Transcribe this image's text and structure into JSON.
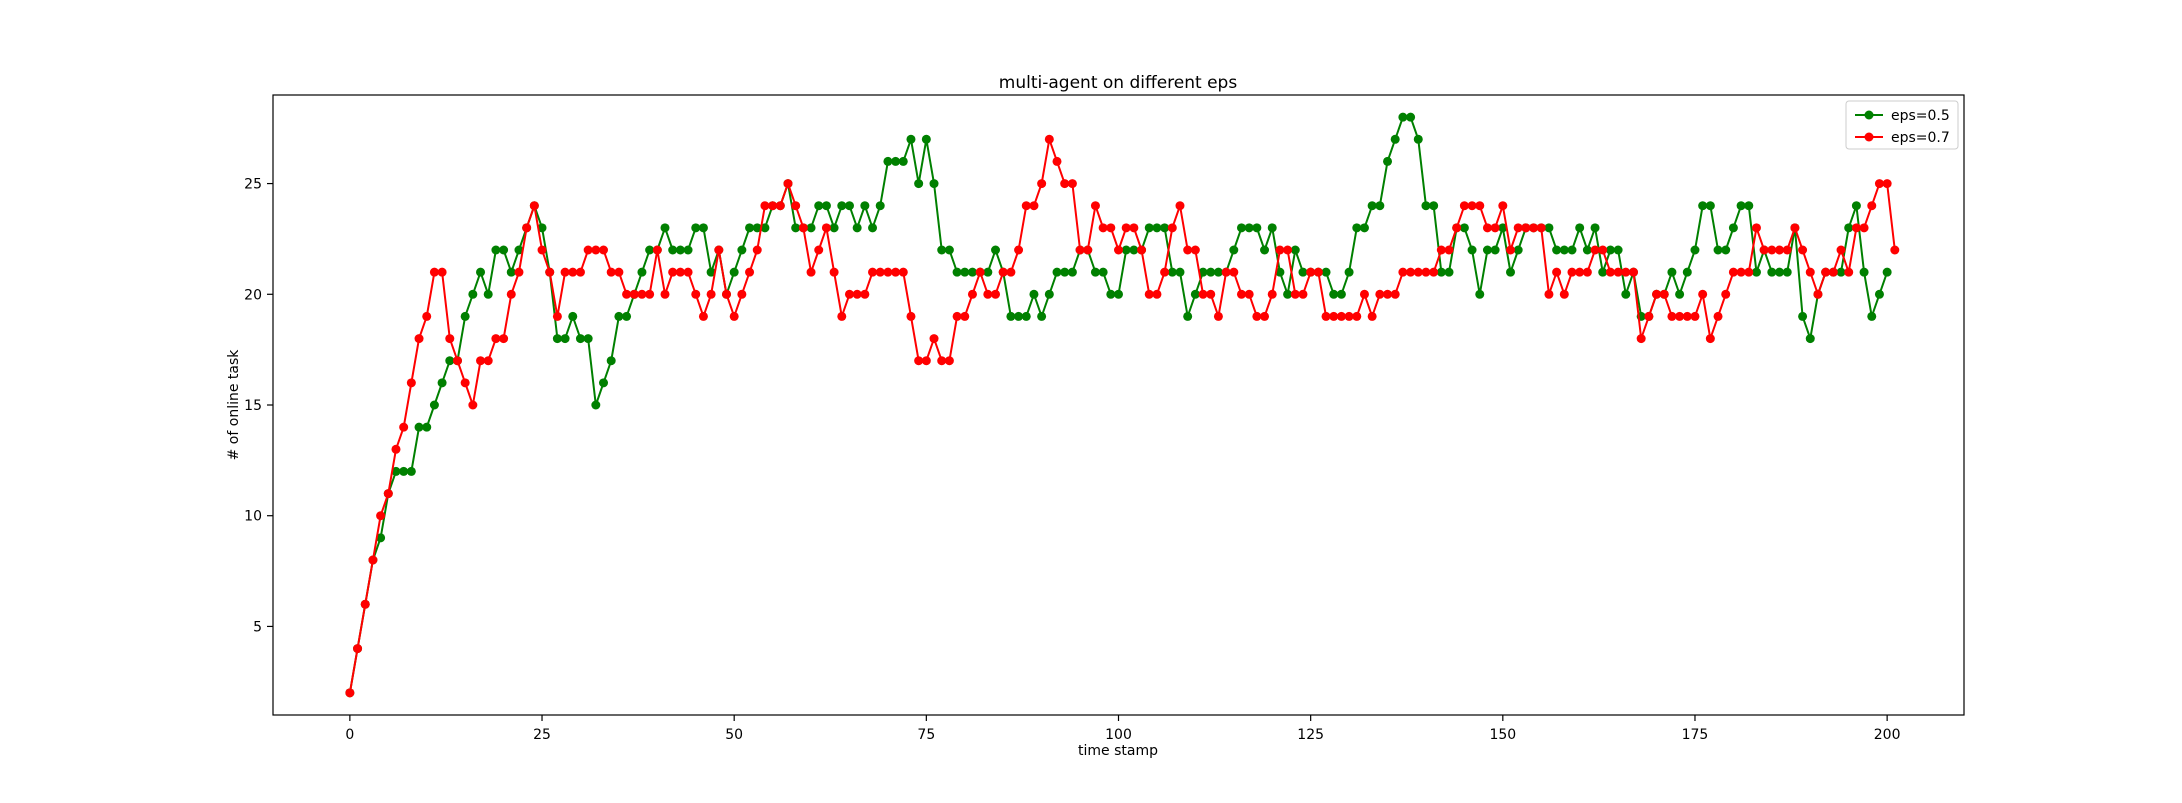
{
  "chart_data": {
    "type": "line",
    "title": "multi-agent on different eps",
    "xlabel": "time stamp",
    "ylabel": "# of online task",
    "xlim": [
      -10,
      210
    ],
    "ylim": [
      1,
      29
    ],
    "xticks": [
      0,
      25,
      50,
      75,
      100,
      125,
      150,
      175,
      200
    ],
    "yticks": [
      5,
      10,
      15,
      20,
      25
    ],
    "grid": false,
    "legend": "top-right",
    "series": [
      {
        "name": "eps=0.5",
        "color": "#008000",
        "marker": "circle",
        "values": [
          2,
          4,
          6,
          8,
          9,
          11,
          12,
          12,
          12,
          14,
          14,
          15,
          16,
          17,
          17,
          19,
          20,
          21,
          20,
          22,
          22,
          21,
          22,
          23,
          24,
          23,
          21,
          18,
          18,
          19,
          18,
          18,
          15,
          16,
          17,
          19,
          19,
          20,
          21,
          22,
          22,
          23,
          22,
          22,
          22,
          23,
          23,
          21,
          22,
          20,
          21,
          22,
          23,
          23,
          23,
          24,
          24,
          25,
          23,
          23,
          23,
          24,
          24,
          23,
          24,
          24,
          23,
          24,
          23,
          24,
          26,
          26,
          26,
          27,
          25,
          27,
          25,
          22,
          22,
          21,
          21,
          21,
          21,
          21,
          22,
          21,
          19,
          19,
          19,
          20,
          19,
          20,
          21,
          21,
          21,
          22,
          22,
          21,
          21,
          20,
          20,
          22,
          22,
          22,
          23,
          23,
          23,
          21,
          21,
          19,
          20,
          21,
          21,
          21,
          21,
          22,
          23,
          23,
          23,
          22,
          23,
          21,
          20,
          22,
          21,
          21,
          21,
          21,
          20,
          20,
          21,
          23,
          23,
          24,
          24,
          26,
          27,
          28,
          28,
          27,
          24,
          24,
          21,
          21,
          23,
          23,
          22,
          20,
          22,
          22,
          23,
          21,
          22,
          23,
          23,
          23,
          23,
          22,
          22,
          22,
          23,
          22,
          23,
          21,
          22,
          22,
          20,
          21,
          19,
          19,
          20,
          20,
          21,
          20,
          21,
          22,
          24,
          24,
          22,
          22,
          23,
          24,
          24,
          21,
          22,
          21,
          21,
          21,
          23,
          19,
          18,
          20,
          21,
          21,
          21,
          23,
          24,
          21,
          19,
          20,
          21
        ]
      },
      {
        "name": "eps=0.7",
        "color": "#ff0000",
        "marker": "circle",
        "values": [
          2,
          4,
          6,
          8,
          10,
          11,
          13,
          14,
          16,
          18,
          19,
          21,
          21,
          18,
          17,
          16,
          15,
          17,
          17,
          18,
          18,
          20,
          21,
          23,
          24,
          22,
          21,
          19,
          21,
          21,
          21,
          22,
          22,
          22,
          21,
          21,
          20,
          20,
          20,
          20,
          22,
          20,
          21,
          21,
          21,
          20,
          19,
          20,
          22,
          20,
          19,
          20,
          21,
          22,
          24,
          24,
          24,
          25,
          24,
          23,
          21,
          22,
          23,
          21,
          19,
          20,
          20,
          20,
          21,
          21,
          21,
          21,
          21,
          19,
          17,
          17,
          18,
          17,
          17,
          19,
          19,
          20,
          21,
          20,
          20,
          21,
          21,
          22,
          24,
          24,
          25,
          27,
          26,
          25,
          25,
          22,
          22,
          24,
          23,
          23,
          22,
          23,
          23,
          22,
          20,
          20,
          21,
          23,
          24,
          22,
          22,
          20,
          20,
          19,
          21,
          21,
          20,
          20,
          19,
          19,
          20,
          22,
          22,
          20,
          20,
          21,
          21,
          19,
          19,
          19,
          19,
          19,
          20,
          19,
          20,
          20,
          20,
          21,
          21,
          21,
          21,
          21,
          22,
          22,
          23,
          24,
          24,
          24,
          23,
          23,
          24,
          22,
          23,
          23,
          23,
          23,
          20,
          21,
          20,
          21,
          21,
          21,
          22,
          22,
          21,
          21,
          21,
          21,
          18,
          19,
          20,
          20,
          19,
          19,
          19,
          19,
          20,
          18,
          19,
          20,
          21,
          21,
          21,
          23,
          22,
          22,
          22,
          22,
          23,
          22,
          21,
          20,
          21,
          21,
          22,
          21,
          23,
          23,
          24,
          25,
          25,
          22
        ]
      }
    ]
  }
}
